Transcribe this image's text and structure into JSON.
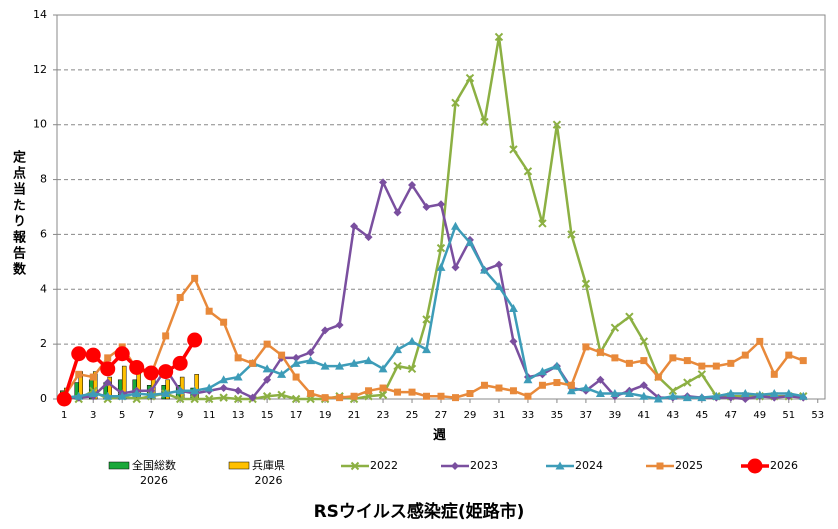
{
  "chart_data": {
    "type": "line",
    "title": "RSウイルス感染症(姫路市)",
    "xlabel": "週",
    "ylabel": "定点当たり報告数",
    "x": [
      1,
      2,
      3,
      4,
      5,
      6,
      7,
      8,
      9,
      10,
      11,
      12,
      13,
      14,
      15,
      16,
      17,
      18,
      19,
      20,
      21,
      22,
      23,
      24,
      25,
      26,
      27,
      28,
      29,
      30,
      31,
      32,
      33,
      34,
      35,
      36,
      37,
      38,
      39,
      40,
      41,
      42,
      43,
      44,
      45,
      46,
      47,
      48,
      49,
      50,
      51,
      52,
      53
    ],
    "xlim": [
      0.5,
      53.5
    ],
    "xticks": [
      1,
      3,
      5,
      7,
      9,
      11,
      13,
      15,
      17,
      19,
      21,
      23,
      25,
      27,
      29,
      31,
      33,
      35,
      37,
      39,
      41,
      43,
      45,
      47,
      49,
      51,
      53
    ],
    "ylim": [
      0,
      14
    ],
    "yticks": [
      0,
      2,
      4,
      6,
      8,
      10,
      12,
      14
    ],
    "grid": true,
    "series": [
      {
        "name": "全国総数\n2026",
        "type": "bar",
        "color": "#1aa83a",
        "values": [
          0.3,
          0.6,
          0.7,
          0.6,
          0.7,
          0.7,
          0.5,
          0.5,
          0.5,
          0.4,
          null,
          null,
          null,
          null,
          null,
          null,
          null,
          null,
          null,
          null,
          null,
          null,
          null,
          null,
          null,
          null,
          null,
          null,
          null,
          null,
          null,
          null,
          null,
          null,
          null,
          null,
          null,
          null,
          null,
          null,
          null,
          null,
          null,
          null,
          null,
          null,
          null,
          null,
          null,
          null,
          null,
          null,
          null
        ]
      },
      {
        "name": "兵庫県\n2026",
        "type": "bar",
        "color": "#ffc000",
        "values": [
          0.4,
          1.0,
          1.0,
          0.8,
          1.2,
          1.1,
          0.8,
          0.7,
          0.8,
          0.9,
          null,
          null,
          null,
          null,
          null,
          null,
          null,
          null,
          null,
          null,
          null,
          null,
          null,
          null,
          null,
          null,
          null,
          null,
          null,
          null,
          null,
          null,
          null,
          null,
          null,
          null,
          null,
          null,
          null,
          null,
          null,
          null,
          null,
          null,
          null,
          null,
          null,
          null,
          null,
          null,
          null,
          null,
          null
        ]
      },
      {
        "name": "2022",
        "type": "line",
        "marker": "x",
        "color": "#8cb043",
        "values": [
          0.1,
          0.0,
          0.3,
          0.0,
          0.1,
          0.0,
          0.1,
          0.2,
          0.0,
          0.0,
          0.0,
          0.05,
          0.0,
          0.0,
          0.1,
          0.15,
          0.0,
          0.0,
          0.0,
          0.1,
          0.0,
          0.1,
          0.15,
          1.2,
          1.1,
          2.9,
          5.5,
          10.8,
          11.7,
          10.1,
          13.2,
          9.1,
          8.3,
          6.4,
          10.0,
          6.0,
          4.2,
          1.7,
          2.6,
          3.0,
          2.1,
          0.8,
          0.3,
          0.6,
          0.9,
          0.1,
          0.1,
          0.1,
          0.1,
          0.1,
          0.1,
          0.1,
          null
        ]
      },
      {
        "name": "2023",
        "type": "line",
        "marker": "diamond",
        "color": "#7a4f9f",
        "values": [
          0.05,
          0.05,
          0.1,
          0.6,
          0.2,
          0.3,
          0.3,
          1.1,
          0.3,
          0.2,
          0.3,
          0.4,
          0.3,
          0.05,
          0.7,
          1.5,
          1.5,
          1.7,
          2.5,
          2.7,
          6.3,
          5.9,
          7.9,
          6.8,
          7.8,
          7.0,
          7.1,
          4.8,
          5.8,
          4.7,
          4.9,
          2.1,
          0.8,
          0.9,
          1.2,
          0.4,
          0.3,
          0.7,
          0.1,
          0.3,
          0.5,
          0.05,
          0.05,
          0.1,
          0.05,
          0.05,
          0.05,
          0.0,
          0.1,
          0.05,
          0.1,
          0.05,
          null
        ]
      },
      {
        "name": "2024",
        "type": "line",
        "marker": "triangle",
        "color": "#3d9cb8",
        "values": [
          0.05,
          0.1,
          0.2,
          0.1,
          0.1,
          0.2,
          0.15,
          0.2,
          0.3,
          0.3,
          0.4,
          0.7,
          0.8,
          1.3,
          1.1,
          0.9,
          1.3,
          1.4,
          1.2,
          1.2,
          1.3,
          1.4,
          1.1,
          1.8,
          2.1,
          1.8,
          4.8,
          6.3,
          5.7,
          4.7,
          4.1,
          3.3,
          0.7,
          1.0,
          1.2,
          0.3,
          0.4,
          0.2,
          0.2,
          0.2,
          0.1,
          0.0,
          0.1,
          0.05,
          0.05,
          0.1,
          0.2,
          0.2,
          0.15,
          0.2,
          0.2,
          0.1,
          null
        ]
      },
      {
        "name": "2025",
        "type": "line",
        "marker": "square",
        "color": "#e8893a",
        "values": [
          0.1,
          0.9,
          0.8,
          1.5,
          1.9,
          1.1,
          0.9,
          2.3,
          3.7,
          4.4,
          3.2,
          2.8,
          1.5,
          1.3,
          2.0,
          1.6,
          0.8,
          0.2,
          0.05,
          0.05,
          0.1,
          0.3,
          0.4,
          0.25,
          0.25,
          0.1,
          0.1,
          0.05,
          0.2,
          0.5,
          0.4,
          0.3,
          0.1,
          0.5,
          0.6,
          0.5,
          1.9,
          1.7,
          1.5,
          1.3,
          1.4,
          0.8,
          1.5,
          1.4,
          1.2,
          1.2,
          1.3,
          1.6,
          2.1,
          0.9,
          1.6,
          1.4,
          null
        ]
      },
      {
        "name": "2026",
        "type": "line",
        "marker": "circle",
        "color": "#ff0000",
        "values": [
          0.0,
          1.65,
          1.6,
          1.1,
          1.65,
          1.15,
          0.95,
          1.0,
          1.3,
          2.15,
          null,
          null,
          null,
          null,
          null,
          null,
          null,
          null,
          null,
          null,
          null,
          null,
          null,
          null,
          null,
          null,
          null,
          null,
          null,
          null,
          null,
          null,
          null,
          null,
          null,
          null,
          null,
          null,
          null,
          null,
          null,
          null,
          null,
          null,
          null,
          null,
          null,
          null,
          null,
          null,
          null,
          null,
          null
        ]
      }
    ]
  }
}
